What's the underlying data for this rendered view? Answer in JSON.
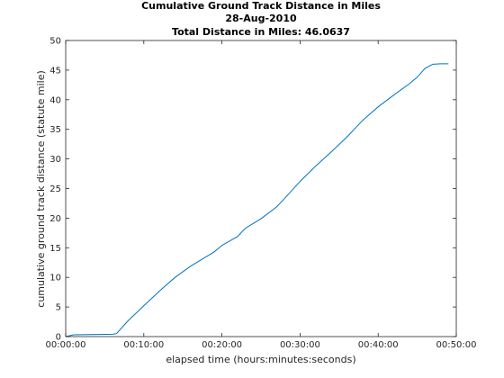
{
  "chart_data": {
    "type": "line",
    "title": [
      "Cumulative Ground Track Distance in Miles",
      "28-Aug-2010",
      "Total Distance in Miles: 46.0637"
    ],
    "xlabel": "elapsed time  (hours:minutes:seconds)",
    "ylabel": "cumulative ground track distance (statute mile)",
    "xlim": [
      "00:00:00",
      "00:50:00"
    ],
    "ylim": [
      0,
      50
    ],
    "x_ticks": [
      "00:00:00",
      "00:10:00",
      "00:20:00",
      "00:30:00",
      "00:40:00",
      "00:50:00"
    ],
    "y_ticks": [
      "0",
      "5",
      "10",
      "15",
      "20",
      "25",
      "30",
      "35",
      "40",
      "45",
      "50"
    ],
    "grid": false,
    "legend": "none",
    "series_color": "#0072BD",
    "series": [
      {
        "x": [
          "00:00:00",
          "00:01:00",
          "00:03:00",
          "00:06:00",
          "00:06:30",
          "00:08:00",
          "00:10:00",
          "00:12:00",
          "00:14:00",
          "00:16:00",
          "00:18:00",
          "00:19:00",
          "00:20:00",
          "00:22:00",
          "00:23:00",
          "00:25:00",
          "00:27:00",
          "00:28:00",
          "00:30:00",
          "00:32:00",
          "00:34:00",
          "00:36:00",
          "00:38:00",
          "00:40:00",
          "00:42:00",
          "00:44:00",
          "00:45:00",
          "00:46:00",
          "00:47:00",
          "00:48:00",
          "00:48:40",
          "00:49:00"
        ],
        "y": [
          0,
          0.3,
          0.35,
          0.4,
          0.5,
          2.7,
          5.2,
          7.7,
          10.0,
          11.9,
          13.5,
          14.3,
          15.4,
          16.9,
          18.3,
          19.9,
          21.9,
          23.3,
          26.2,
          28.8,
          31.2,
          33.7,
          36.5,
          38.8,
          40.8,
          42.7,
          43.8,
          45.3,
          46.0,
          46.06,
          46.06,
          46.0637
        ]
      }
    ]
  }
}
